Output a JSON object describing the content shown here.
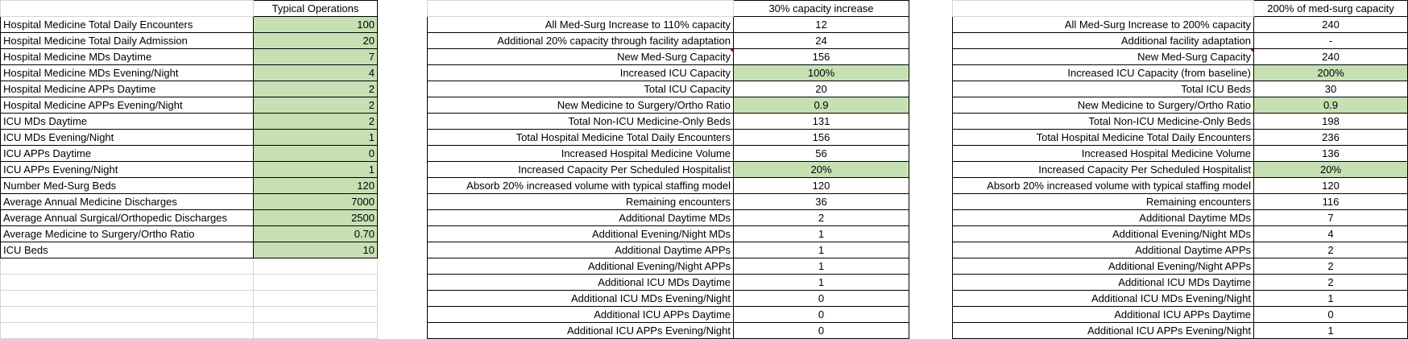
{
  "table1": {
    "header": "Typical Operations",
    "rows": [
      {
        "label": "Hospital Medicine Total Daily Encounters",
        "value": "100"
      },
      {
        "label": "Hospital Medicine Total Daily Admission",
        "value": "20"
      },
      {
        "label": "Hospital Medicine MDs Daytime",
        "value": "7"
      },
      {
        "label": "Hospital Medicine MDs Evening/Night",
        "value": "4"
      },
      {
        "label": "Hospital Medicine APPs Daytime",
        "value": "2"
      },
      {
        "label": "Hospital Medicine APPs Evening/Night",
        "value": "2"
      },
      {
        "label": "ICU MDs Daytime",
        "value": "2"
      },
      {
        "label": "ICU MDs Evening/Night",
        "value": "1"
      },
      {
        "label": "ICU APPs Daytime",
        "value": "0"
      },
      {
        "label": "ICU APPs Evening/Night",
        "value": "1"
      },
      {
        "label": "Number Med-Surg Beds",
        "value": "120"
      },
      {
        "label": "Average Annual Medicine Discharges",
        "value": "7000"
      },
      {
        "label": "Average Annual Surgical/Orthopedic Discharges",
        "value": "2500"
      },
      {
        "label": "Average Medicine to Surgery/Ortho Ratio",
        "value": "0.70"
      },
      {
        "label": "ICU Beds",
        "value": "10"
      }
    ]
  },
  "table2": {
    "header": "30% capacity increase",
    "rows": [
      {
        "label": "All Med-Surg Increase to 110% capacity",
        "value": "12",
        "green": false
      },
      {
        "label": "Additional 20% capacity through facility adaptation",
        "value": "24",
        "green": false
      },
      {
        "label": "New Med-Surg Capacity",
        "value": "156",
        "green": false
      },
      {
        "label": "Increased ICU Capacity",
        "value": "100%",
        "green": true
      },
      {
        "label": "Total ICU Capacity",
        "value": "20",
        "green": false
      },
      {
        "label": "New Medicine to Surgery/Ortho Ratio",
        "value": "0.9",
        "green": true
      },
      {
        "label": "Total Non-ICU Medicine-Only Beds",
        "value": "131",
        "green": false
      },
      {
        "label": "Total Hospital Medicine Total Daily Encounters",
        "value": "156",
        "green": false
      },
      {
        "label": "Increased Hospital Medicine Volume",
        "value": "56",
        "green": false
      },
      {
        "label": "Increased Capacity Per Scheduled Hospitalist",
        "value": "20%",
        "green": true
      },
      {
        "label": "Absorb 20% increased volume with typical staffing model",
        "value": "120",
        "green": false
      },
      {
        "label": "Remaining encounters",
        "value": "36",
        "green": false
      },
      {
        "label": "Additional Daytime MDs",
        "value": "2",
        "green": false
      },
      {
        "label": "Additional Evening/Night MDs",
        "value": "1",
        "green": false
      },
      {
        "label": "Additional Daytime APPs",
        "value": "1",
        "green": false
      },
      {
        "label": "Additional Evening/Night APPs",
        "value": "1",
        "green": false
      },
      {
        "label": "Additional ICU MDs Daytime",
        "value": "1",
        "green": false
      },
      {
        "label": "Additional ICU MDs Evening/Night",
        "value": "0",
        "green": false
      },
      {
        "label": "Additional ICU APPs Daytime",
        "value": "0",
        "green": false
      },
      {
        "label": "Additional ICU APPs Evening/Night",
        "value": "0",
        "green": false
      }
    ]
  },
  "table3": {
    "header": "200% of med-surg capacity",
    "rows": [
      {
        "label": "All Med-Surg Increase to 200% capacity",
        "value": "240",
        "green": false
      },
      {
        "label": "Additional facility adaptation",
        "value": "-",
        "green": false
      },
      {
        "label": "New Med-Surg Capacity",
        "value": "240",
        "green": false
      },
      {
        "label": "Increased ICU Capacity (from baseline)",
        "value": "200%",
        "green": true
      },
      {
        "label": "Total ICU Beds",
        "value": "30",
        "green": false
      },
      {
        "label": "New Medicine to Surgery/Ortho Ratio",
        "value": "0.9",
        "green": true
      },
      {
        "label": "Total Non-ICU Medicine-Only Beds",
        "value": "198",
        "green": false
      },
      {
        "label": "Total Hospital Medicine Total Daily Encounters",
        "value": "236",
        "green": false
      },
      {
        "label": "Increased Hospital Medicine Volume",
        "value": "136",
        "green": false
      },
      {
        "label": "Increased Capacity Per Scheduled Hospitalist",
        "value": "20%",
        "green": true
      },
      {
        "label": "Absorb 20% increased volume with typical staffing model",
        "value": "120",
        "green": false
      },
      {
        "label": "Remaining encounters",
        "value": "116",
        "green": false
      },
      {
        "label": "Additional Daytime MDs",
        "value": "7",
        "green": false
      },
      {
        "label": "Additional Evening/Night MDs",
        "value": "4",
        "green": false
      },
      {
        "label": "Additional Daytime APPs",
        "value": "2",
        "green": false
      },
      {
        "label": "Additional Evening/Night APPs",
        "value": "2",
        "green": false
      },
      {
        "label": "Additional ICU MDs Daytime",
        "value": "2",
        "green": false
      },
      {
        "label": "Additional ICU MDs Evening/Night",
        "value": "1",
        "green": false
      },
      {
        "label": "Additional ICU APPs Daytime",
        "value": "0",
        "green": false
      },
      {
        "label": "Additional ICU APPs Evening/Night",
        "value": "1",
        "green": false
      }
    ]
  },
  "colors": {
    "input_fill": "#c6e0b4",
    "comment_marker": "#c00000",
    "gridline": "#d4d4d4",
    "border": "#000000"
  }
}
